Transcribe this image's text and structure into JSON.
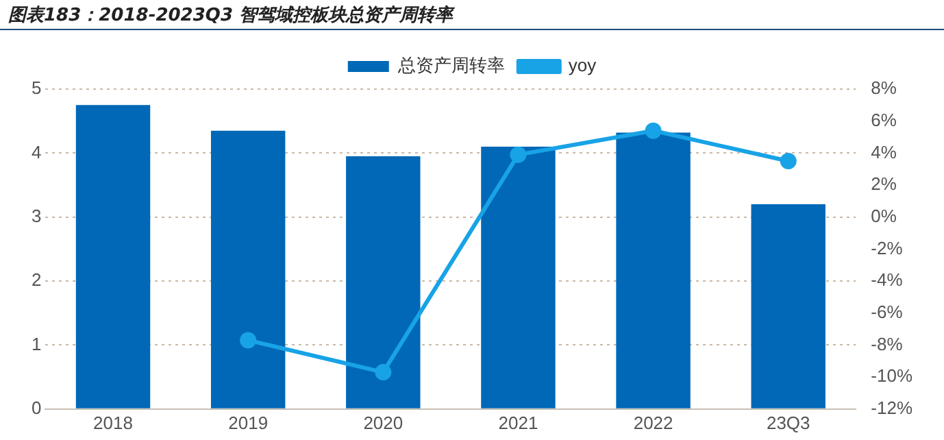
{
  "chart_data": {
    "type": "bar",
    "title": "图表183：2018-2023Q3 智驾域控板块总资产周转率",
    "categories": [
      "2018",
      "2019",
      "2020",
      "2021",
      "2022",
      "23Q3"
    ],
    "series": [
      {
        "name": "总资产周转率",
        "color": "#0068b7",
        "values": [
          4.75,
          4.35,
          3.95,
          4.1,
          4.32,
          3.2
        ]
      },
      {
        "name": "yoy",
        "type": "line",
        "axis": "y2",
        "color": "#18a3e6",
        "values": [
          null,
          -7.7,
          -9.7,
          3.9,
          5.4,
          3.5
        ]
      }
    ],
    "ylim": [
      0,
      5
    ],
    "yticks": [
      0,
      1,
      2,
      3,
      4,
      5
    ],
    "y2lim": [
      -12,
      8
    ],
    "y2ticks": [
      {
        "value": -12,
        "label": "-12%"
      },
      {
        "value": -10,
        "label": "-10%"
      },
      {
        "value": -8,
        "label": "-8%"
      },
      {
        "value": -6,
        "label": "-6%"
      },
      {
        "value": -4,
        "label": "-4%"
      },
      {
        "value": -2,
        "label": "-2%"
      },
      {
        "value": 0,
        "label": "0%"
      },
      {
        "value": 2,
        "label": "2%"
      },
      {
        "value": 4,
        "label": "4%"
      },
      {
        "value": 6,
        "label": "6%"
      },
      {
        "value": 8,
        "label": "8%"
      }
    ],
    "grid": "y",
    "legend": "top",
    "marker": "circle",
    "line_style": "solid"
  }
}
